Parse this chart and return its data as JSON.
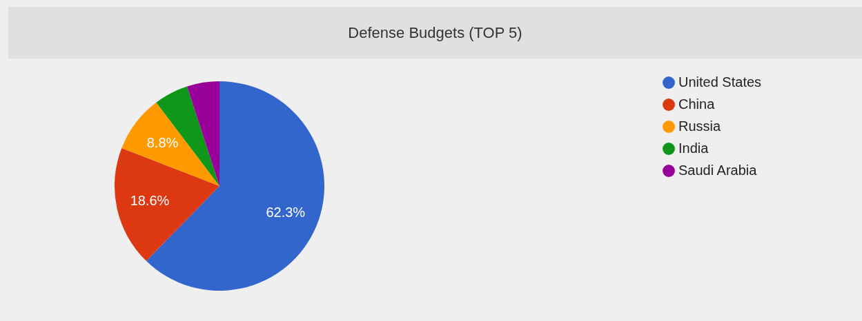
{
  "chart_data": {
    "type": "pie",
    "title": "Defense Budgets (TOP 5)",
    "categories": [
      "United States",
      "China",
      "Russia",
      "India",
      "Saudi Arabia"
    ],
    "values": [
      62.3,
      18.6,
      8.8,
      5.3,
      5.0
    ],
    "value_labels": [
      "62.3%",
      "18.6%",
      "8.8%",
      null,
      null
    ],
    "colors": [
      "#3366cc",
      "#dc3912",
      "#ff9900",
      "#109618",
      "#990099"
    ],
    "legend": "top right"
  }
}
